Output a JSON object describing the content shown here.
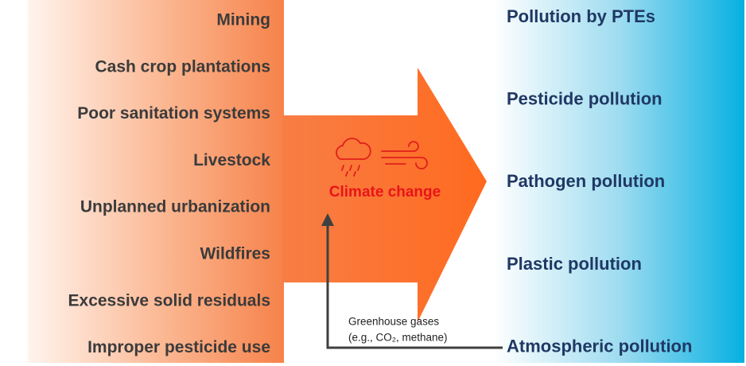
{
  "sources": [
    "Mining",
    "Cash crop plantations",
    "Poor sanitation systems",
    "Livestock",
    "Unplanned urbanization",
    "Wildfires",
    "Excessive solid residuals",
    "Improper pesticide use"
  ],
  "driver": "Climate change",
  "outcomes": [
    "Pollution by PTEs",
    "Pesticide pollution",
    "Pathogen pollution",
    "Plastic pollution",
    "Atmospheric pollution"
  ],
  "feedback": [
    "Greenhouse gases",
    "(e.g., CO₂, methane)"
  ]
}
